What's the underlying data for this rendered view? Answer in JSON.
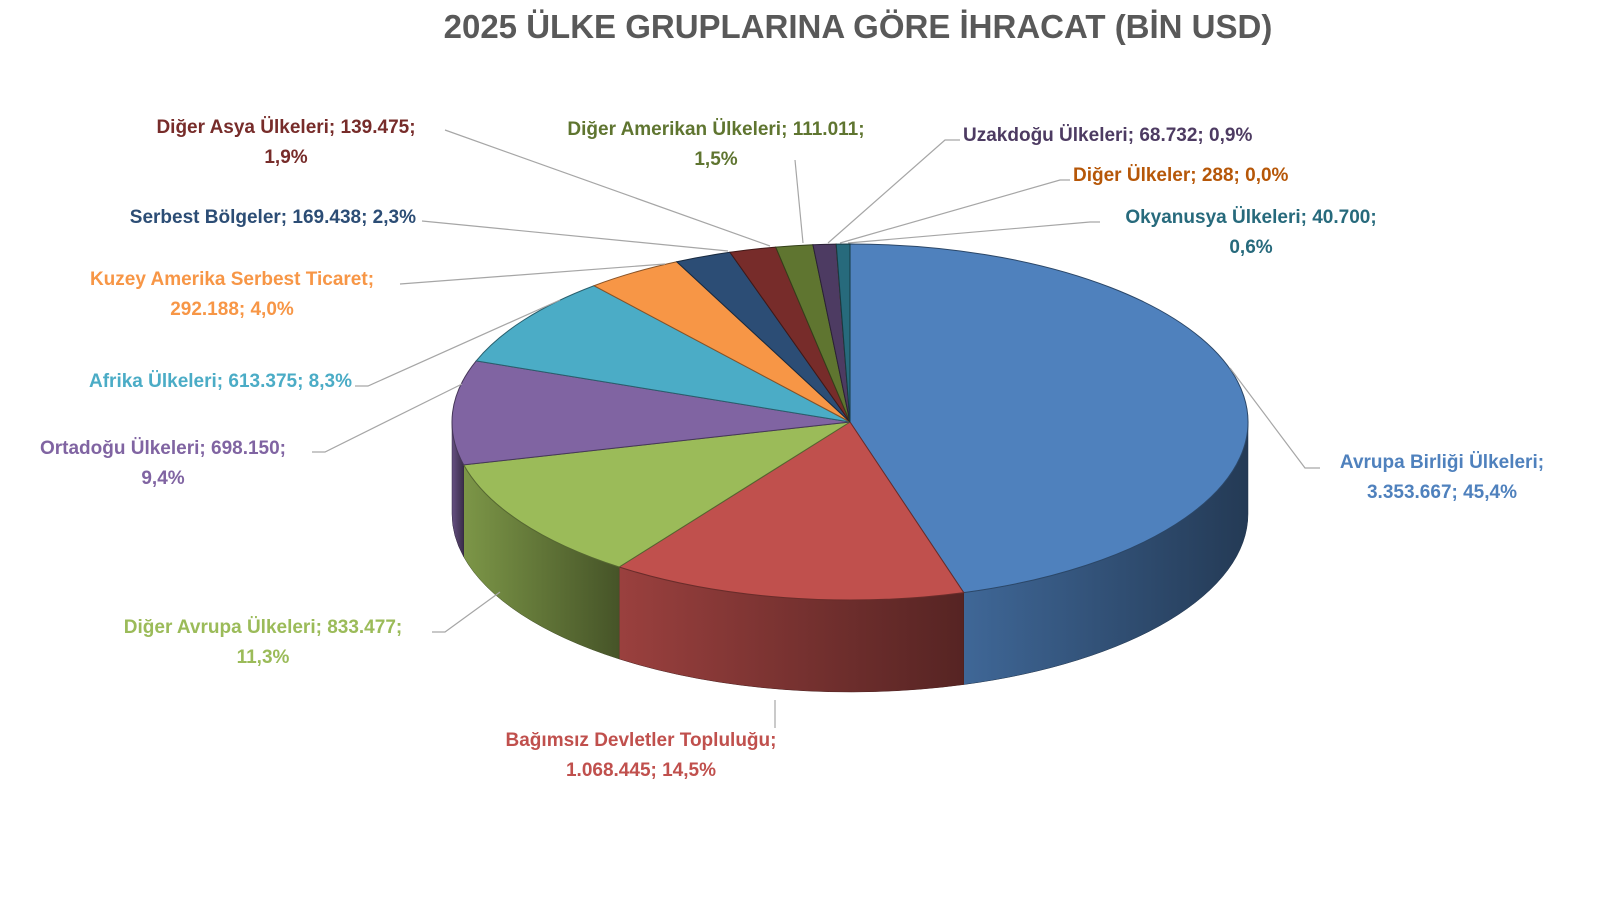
{
  "chart_data": {
    "type": "pie",
    "style": "3d",
    "title": "2025 ÜLKE GRUPLARINA GÖRE İHRACAT (BİN USD)",
    "legend": "none",
    "slices": [
      {
        "name": "Avrupa Birliği Ülkeleri",
        "value": "3.353.667",
        "percent": "45,4%",
        "color": "#4F81BD"
      },
      {
        "name": "Bağımsız Devletler Topluluğu",
        "value": "1.068.445",
        "percent": "14,5%",
        "color": "#C0504D"
      },
      {
        "name": "Diğer Avrupa Ülkeleri",
        "value": "833.477",
        "percent": "11,3%",
        "color": "#9BBB59"
      },
      {
        "name": "Ortadoğu Ülkeleri",
        "value": "698.150",
        "percent": "9,4%",
        "color": "#8064A2"
      },
      {
        "name": "Afrika Ülkeleri",
        "value": "613.375",
        "percent": "8,3%",
        "color": "#4BACC6"
      },
      {
        "name": "Kuzey Amerika Serbest Ticaret",
        "value": "292.188",
        "percent": "4,0%",
        "color": "#F79646"
      },
      {
        "name": "Serbest Bölgeler",
        "value": "169.438",
        "percent": "2,3%",
        "color": "#2C4D75"
      },
      {
        "name": "Diğer Asya Ülkeleri",
        "value": "139.475",
        "percent": "1,9%",
        "color": "#772C2A"
      },
      {
        "name": "Diğer Amerikan Ülkeleri",
        "value": "111.011",
        "percent": "1,5%",
        "color": "#5F7530"
      },
      {
        "name": "Uzakdoğu Ülkeleri",
        "value": "68.732",
        "percent": "0,9%",
        "color": "#4D3B62"
      },
      {
        "name": "Diğer Ülkeler",
        "value": "288",
        "percent": "0,0%",
        "color": "#B65708"
      },
      {
        "name": "Okyanusya Ülkeleri",
        "value": "40.700",
        "percent": "0,6%",
        "color": "#276A7C"
      }
    ]
  }
}
